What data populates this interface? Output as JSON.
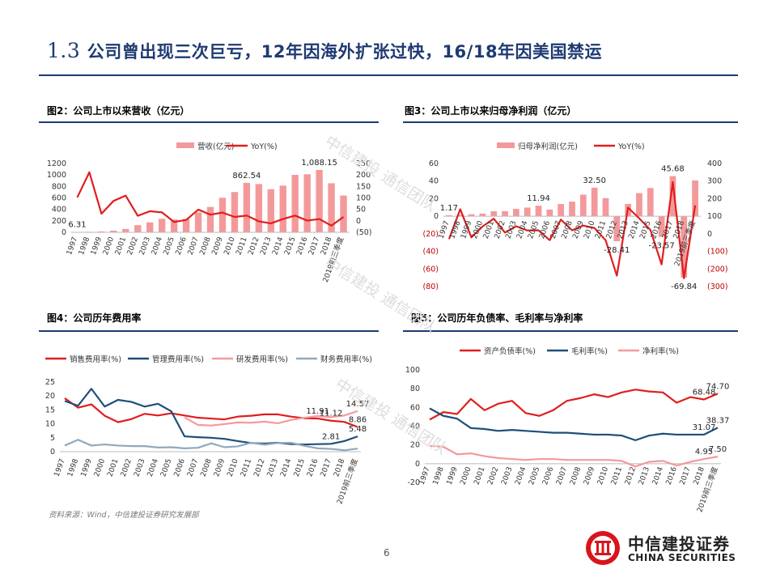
{
  "page_title_num": "1.3",
  "page_title_text": "公司曾出现三次巨亏，12年因海外扩张过快，16/18年因美国禁运",
  "source": "资料来源：Wind，中信建投证券研究发展部",
  "page_number": "6",
  "logo": {
    "cn": "中信建投证券",
    "en": "CHINA SECURITIES"
  },
  "watermark": "中信建投 通信团队",
  "colors": {
    "red": "#e01e1e",
    "pink": "#f4999b",
    "navy": "#1f4e79",
    "steel": "#8fa9bd",
    "title": "#1f3a73"
  },
  "chart_data": [
    {
      "id": "fig2",
      "type": "bar",
      "title": "图2：公司上市以来营收（亿元）",
      "categories": [
        "1997",
        "1998",
        "1999",
        "2000",
        "2001",
        "2002",
        "2003",
        "2004",
        "2005",
        "2006",
        "2007",
        "2008",
        "2009",
        "2010",
        "2011",
        "2012",
        "2013",
        "2014",
        "2015",
        "2016",
        "2017",
        "2018",
        "2019前三季度"
      ],
      "series": [
        {
          "name": "营收(亿元)",
          "kind": "bar",
          "axis": "left",
          "values": [
            6.31,
            9.6,
            14.8,
            28.7,
            58.9,
            125.1,
            173.2,
            236.5,
            224.7,
            233.3,
            347.8,
            442.9,
            602.7,
            702.6,
            862.54,
            842.2,
            752.3,
            814.7,
            1001.9,
            1012.3,
            1088.15,
            855.1,
            641.8
          ]
        },
        {
          "name": "YoY(%)",
          "kind": "line",
          "axis": "right",
          "values": [
            102,
            212,
            31,
            87,
            110,
            22,
            42,
            37,
            -5,
            4,
            49,
            27,
            36,
            17,
            23,
            -2,
            -11,
            8,
            23,
            1,
            8,
            -21,
            17
          ]
        }
      ],
      "labels": [
        {
          "index": 0,
          "text": "6.31"
        },
        {
          "index": 14,
          "text": "862.54"
        },
        {
          "index": 20,
          "text": "1,088.15"
        }
      ],
      "left_ticks": [
        "1200",
        "1000",
        "800",
        "600",
        "400",
        "200",
        "0"
      ],
      "right_ticks": [
        "250",
        "200",
        "150",
        "100",
        "50",
        "0",
        "(50)"
      ],
      "ylim_left": [
        0,
        1200
      ],
      "ylim_right": [
        -50,
        250
      ]
    },
    {
      "id": "fig3",
      "type": "bar",
      "title": "图3：公司上市以来归母净利润（亿元）",
      "categories": [
        "1997",
        "1998",
        "1999",
        "2000",
        "2001",
        "2002",
        "2003",
        "2004",
        "2005",
        "2006",
        "2007",
        "2008",
        "2009",
        "2010",
        "2011",
        "2012",
        "2013",
        "2014",
        "2015",
        "2016",
        "2017",
        "2018",
        "2019前三季度"
      ],
      "series": [
        {
          "name": "归母净利润(亿元)",
          "kind": "bar",
          "axis": "left",
          "values": [
            1.17,
            1.8,
            2.3,
            3.0,
            5.7,
            5.8,
            8.4,
            9.9,
            11.94,
            7.6,
            13.9,
            16.6,
            24.6,
            32.5,
            20.6,
            -28.41,
            14.0,
            26.3,
            32.1,
            -23.57,
            45.68,
            -69.84,
            40.7
          ]
        },
        {
          "name": "YoY(%)",
          "kind": "line",
          "axis": "right",
          "values": [
            -30,
            140,
            -20,
            42,
            86,
            7,
            43,
            19,
            20,
            -36,
            81,
            20,
            47,
            33,
            -37,
            -238,
            149,
            88,
            22,
            -174,
            294,
            -253,
            162
          ]
        }
      ],
      "labels": [
        {
          "index": 0,
          "text": "1.17"
        },
        {
          "index": 8,
          "text": "11.94"
        },
        {
          "index": 13,
          "text": "32.50"
        },
        {
          "index": 15,
          "text": "-28.41"
        },
        {
          "index": 19,
          "text": "-23.57"
        },
        {
          "index": 20,
          "text": "45.68"
        },
        {
          "index": 21,
          "text": "-69.84"
        }
      ],
      "left_ticks": [
        "60",
        "40",
        "20",
        "0",
        "(20)",
        "(40)",
        "(60)",
        "(80)"
      ],
      "right_ticks": [
        "400",
        "300",
        "200",
        "100",
        "0",
        "(100)",
        "(200)",
        "(300)"
      ],
      "ylim_left": [
        -80,
        60
      ],
      "ylim_right": [
        -300,
        400
      ]
    },
    {
      "id": "fig4",
      "type": "line",
      "title": "图4：公司历年费用率",
      "categories": [
        "1997",
        "1998",
        "1999",
        "2000",
        "2001",
        "2002",
        "2003",
        "2004",
        "2005",
        "2006",
        "2007",
        "2008",
        "2009",
        "2010",
        "2011",
        "2012",
        "2013",
        "2014",
        "2015",
        "2016",
        "2017",
        "2018",
        "2019前三季度"
      ],
      "series": [
        {
          "name": "销售费用率(%)",
          "color": "#e01e1e",
          "values": [
            19.2,
            15.8,
            17.0,
            12.9,
            10.6,
            11.7,
            13.6,
            13.0,
            13.8,
            13.0,
            12.2,
            11.9,
            11.6,
            12.6,
            12.9,
            13.4,
            13.4,
            12.6,
            12.0,
            11.91,
            11.12,
            10.7,
            8.86
          ]
        },
        {
          "name": "管理费用率(%)",
          "color": "#1f4e79",
          "values": [
            18.2,
            16.5,
            22.6,
            16.2,
            18.6,
            17.9,
            16.2,
            17.2,
            14.5,
            5.5,
            5.2,
            5.0,
            4.6,
            3.8,
            3.1,
            2.9,
            3.2,
            2.7,
            2.6,
            2.7,
            2.81,
            3.8,
            5.48
          ]
        },
        {
          "name": "研发费用率(%)",
          "color": "#f4999b",
          "start": 9,
          "values": [
            null,
            null,
            null,
            null,
            null,
            null,
            null,
            null,
            null,
            12.3,
            9.6,
            9.4,
            9.9,
            10.5,
            10.4,
            10.8,
            10.2,
            11.4,
            12.2,
            12.8,
            12.4,
            13.0,
            14.57
          ]
        },
        {
          "name": "财务费用率(%)",
          "color": "#8fa9bd",
          "values": [
            2.2,
            4.3,
            2.2,
            2.6,
            2.2,
            2.0,
            2.0,
            1.5,
            1.6,
            1.2,
            1.4,
            3.0,
            1.6,
            1.9,
            3.2,
            2.5,
            3.1,
            3.2,
            2.1,
            1.2,
            1.0,
            0.5,
            1.1
          ]
        }
      ],
      "labels": [
        {
          "series": 2,
          "index": 22,
          "text": "14.57"
        },
        {
          "series": 0,
          "index": 19,
          "text": "11.91"
        },
        {
          "series": 0,
          "index": 20,
          "text": "11.12"
        },
        {
          "series": 0,
          "index": 22,
          "text": "8.86"
        },
        {
          "series": 1,
          "index": 20,
          "text": "2.81"
        },
        {
          "series": 1,
          "index": 22,
          "text": "5.48"
        }
      ],
      "y_ticks": [
        "25",
        "20",
        "15",
        "10",
        "5",
        "0"
      ],
      "ylim": [
        0,
        25
      ]
    },
    {
      "id": "fig5",
      "type": "line",
      "title": "图5：公司历年负债率、毛利率与净利率",
      "categories": [
        "1997",
        "1998",
        "1999",
        "2000",
        "2001",
        "2002",
        "2003",
        "2004",
        "2005",
        "2006",
        "2007",
        "2008",
        "2009",
        "2010",
        "2011",
        "2012",
        "2013",
        "2014",
        "2016",
        "2017",
        "2018",
        "2019前三季度"
      ],
      "series": [
        {
          "name": "资产负债率(%)",
          "color": "#e01e1e",
          "values": [
            47,
            55,
            53,
            69,
            57,
            64,
            67,
            54,
            51,
            57,
            67,
            70,
            74,
            71,
            76,
            79,
            77,
            76,
            65,
            71,
            68.48,
            74.7
          ]
        },
        {
          "name": "毛利率(%)",
          "color": "#1f4e79",
          "values": [
            59,
            51,
            48,
            38,
            37,
            35,
            36,
            35,
            34,
            33,
            33,
            32,
            31,
            31,
            30,
            25,
            30,
            32,
            31,
            31,
            31.07,
            38.37
          ]
        },
        {
          "name": "净利率(%)",
          "color": "#f4999b",
          "values": [
            19,
            18,
            10,
            11,
            8,
            6,
            5,
            4,
            5,
            5,
            4,
            4,
            4,
            4,
            3,
            -3,
            2,
            3,
            -2,
            2,
            4.95,
            7.5
          ]
        }
      ],
      "labels": [
        {
          "series": 0,
          "index": 20,
          "text": "68.48"
        },
        {
          "series": 0,
          "index": 21,
          "text": "74.70"
        },
        {
          "series": 1,
          "index": 20,
          "text": "31.07"
        },
        {
          "series": 1,
          "index": 21,
          "text": "38.37"
        },
        {
          "series": 2,
          "index": 20,
          "text": "4.95"
        },
        {
          "series": 2,
          "index": 21,
          "text": "7.50"
        }
      ],
      "y_ticks": [
        "100",
        "80",
        "60",
        "40",
        "20",
        "0",
        "-20"
      ],
      "ylim": [
        -20,
        100
      ]
    }
  ]
}
